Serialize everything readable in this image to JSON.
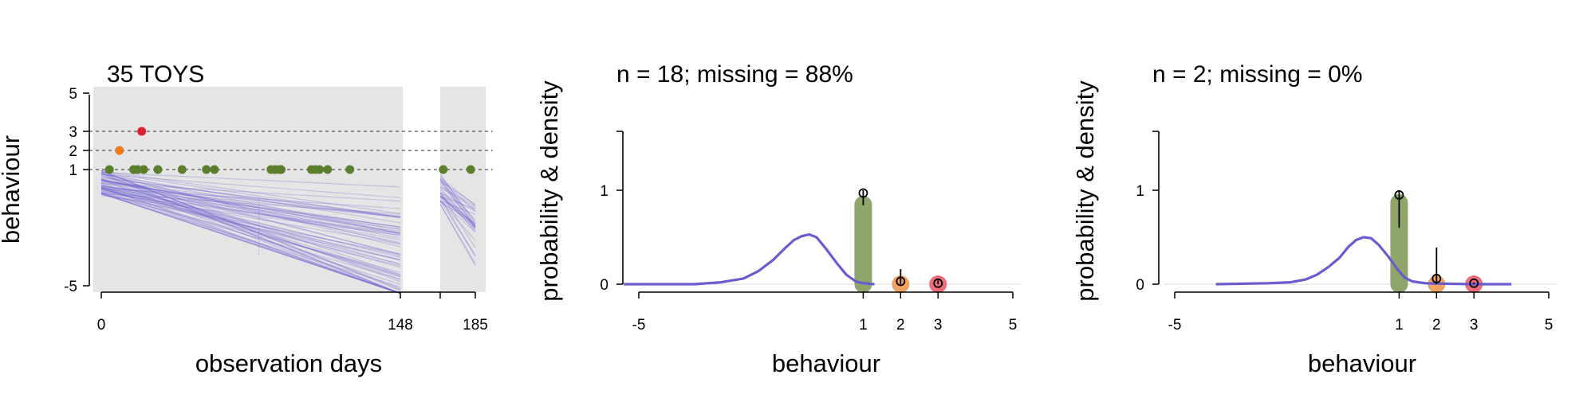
{
  "chart_data": [
    {
      "type": "scatter",
      "title": "35 TOYS",
      "xlabel": "observation days",
      "ylabel": "behaviour",
      "x_ticks": [
        "0",
        "148",
        "185"
      ],
      "y_ticks": [
        "5",
        "3",
        "2",
        "1",
        "-5"
      ],
      "x_segments": [
        [
          0,
          148
        ],
        [
          162,
          185
        ]
      ],
      "reference_lines_y": [
        1,
        2,
        3
      ],
      "points": [
        {
          "x": 4,
          "y": 1,
          "category": "1"
        },
        {
          "x": 9,
          "y": 2,
          "category": "2"
        },
        {
          "x": 16,
          "y": 1,
          "category": "1"
        },
        {
          "x": 18,
          "y": 1,
          "category": "1"
        },
        {
          "x": 20,
          "y": 3,
          "category": "3"
        },
        {
          "x": 21,
          "y": 1,
          "category": "1"
        },
        {
          "x": 28,
          "y": 1,
          "category": "1"
        },
        {
          "x": 40,
          "y": 1,
          "category": "1"
        },
        {
          "x": 52,
          "y": 1,
          "category": "1"
        },
        {
          "x": 56,
          "y": 1,
          "category": "1"
        },
        {
          "x": 84,
          "y": 1,
          "category": "1"
        },
        {
          "x": 86,
          "y": 1,
          "category": "1"
        },
        {
          "x": 88,
          "y": 1,
          "category": "1"
        },
        {
          "x": 89,
          "y": 1,
          "category": "1"
        },
        {
          "x": 104,
          "y": 1,
          "category": "1"
        },
        {
          "x": 106,
          "y": 1,
          "category": "1"
        },
        {
          "x": 108,
          "y": 1,
          "category": "1"
        },
        {
          "x": 112,
          "y": 1,
          "category": "1"
        },
        {
          "x": 123,
          "y": 1,
          "category": "1"
        },
        {
          "x": 164,
          "y": 1,
          "category": "1"
        },
        {
          "x": 182,
          "y": 1,
          "category": "1"
        }
      ]
    },
    {
      "type": "bar",
      "title": "n = 18; missing = 88%",
      "xlabel": "behaviour",
      "ylabel": "probability & density",
      "x_ticks": [
        "-5",
        "1",
        "2",
        "3",
        "5"
      ],
      "y_ticks": [
        "0",
        "1"
      ],
      "xlim": [
        -5,
        5
      ],
      "ylim": [
        0,
        1.6
      ],
      "categories": [
        "1",
        "2",
        "3"
      ],
      "values": [
        0.94,
        0.05,
        0.02
      ],
      "points": [
        {
          "x": 1,
          "y": 0.97,
          "err_low": 0.84,
          "err_high": 1.0
        },
        {
          "x": 2,
          "y": 0.03,
          "err_low": 0.0,
          "err_high": 0.16
        },
        {
          "x": 3,
          "y": 0.01,
          "err_low": 0.0,
          "err_high": 0.04
        }
      ],
      "density": {
        "x": [
          -5.4,
          -3.5,
          -2.8,
          -2.2,
          -1.8,
          -1.4,
          -1.1,
          -0.85,
          -0.65,
          -0.45,
          -0.25,
          0,
          0.3,
          0.55,
          0.8,
          1.0,
          1.3
        ],
        "y": [
          0.0,
          0.0,
          0.02,
          0.06,
          0.14,
          0.26,
          0.38,
          0.47,
          0.51,
          0.53,
          0.5,
          0.38,
          0.22,
          0.1,
          0.03,
          0.01,
          0.0
        ]
      }
    },
    {
      "type": "bar",
      "title": "n = 2; missing = 0%",
      "xlabel": "behaviour",
      "ylabel": "probability & density",
      "x_ticks": [
        "-5",
        "1",
        "2",
        "3",
        "5"
      ],
      "y_ticks": [
        "0",
        "1"
      ],
      "xlim": [
        -5,
        5
      ],
      "ylim": [
        0,
        1.6
      ],
      "categories": [
        "1",
        "2",
        "3"
      ],
      "values": [
        0.96,
        0.0,
        0.0
      ],
      "points": [
        {
          "x": 1,
          "y": 0.95,
          "err_low": 0.6,
          "err_high": 1.0
        },
        {
          "x": 2,
          "y": 0.06,
          "err_low": 0.0,
          "err_high": 0.39
        },
        {
          "x": 3,
          "y": 0.01,
          "err_low": 0.0,
          "err_high": 0.02
        }
      ],
      "density": {
        "x": [
          -3.9,
          -2.5,
          -1.9,
          -1.5,
          -1.2,
          -0.9,
          -0.6,
          -0.35,
          -0.15,
          0.05,
          0.25,
          0.45,
          0.7,
          0.95,
          1.15,
          1.35,
          1.7,
          2.2,
          3.0,
          4.0
        ],
        "y": [
          0.0,
          0.01,
          0.02,
          0.05,
          0.1,
          0.18,
          0.28,
          0.4,
          0.47,
          0.5,
          0.49,
          0.42,
          0.3,
          0.16,
          0.07,
          0.03,
          0.01,
          0.005,
          0.0,
          0.0
        ]
      }
    }
  ],
  "colors": {
    "category_1": "#5c7f2e",
    "category_2": "#ef7a1d",
    "category_3": "#e0202f",
    "bar_1": "#8fa66b",
    "bar_2": "#f2a260",
    "bar_3": "#ec6d78",
    "density": "#6a5ccf",
    "trajectories": "#6a5ccf",
    "panel_bg": "#e5e5e5"
  }
}
